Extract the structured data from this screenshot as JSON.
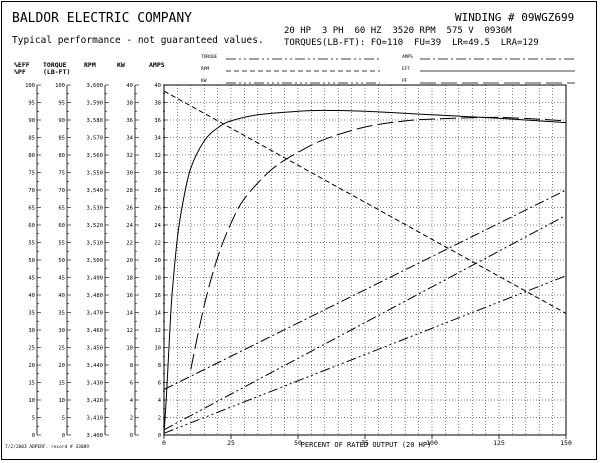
{
  "header": {
    "company": "BALDOR ELECTRIC COMPANY",
    "winding": "WINDING # 09WGZ699",
    "disclaimer": "Typical performance - not guaranteed values.",
    "nameplate": "20 HP  3 PH  60 HZ  3520 RPM  575 V  0936M",
    "torques": "TORQUES(LB-FT): FO=110  FU=39  LR=49.5  LRA=129"
  },
  "legend": {
    "left": [
      "TORQUE",
      "RPM",
      "KW"
    ],
    "right": [
      "AMPS",
      "EFF",
      "PF"
    ]
  },
  "footer": "7/2/2003 ADPERF. record # 33009",
  "chart_data": {
    "type": "line",
    "xlabel": "PERCENT OF RATED OUTPUT (20 HP)",
    "xlim": [
      0,
      150
    ],
    "x_ticks": [
      0,
      25,
      50,
      75,
      100,
      125,
      150
    ],
    "axes": [
      {
        "header": [
          "%EFF",
          "%PF"
        ],
        "range": [
          0,
          100
        ],
        "step": 5,
        "ticks": [
          "0",
          "5",
          "10",
          "15",
          "20",
          "25",
          "30",
          "35",
          "40",
          "45",
          "50",
          "55",
          "60",
          "65",
          "70",
          "75",
          "80",
          "85",
          "90",
          "95",
          "100"
        ]
      },
      {
        "header": [
          "TORQUE",
          "(LB-FT)"
        ],
        "range": [
          0,
          100
        ],
        "step": 5,
        "ticks": [
          "0",
          "5",
          "10",
          "15",
          "20",
          "25",
          "30",
          "35",
          "40",
          "45",
          "50",
          "55",
          "60",
          "65",
          "70",
          "75",
          "80",
          "85",
          "90",
          "95",
          "100"
        ]
      },
      {
        "header": [
          "",
          "RPM"
        ],
        "range": [
          3400,
          3600
        ],
        "step": 10,
        "ticks": [
          "3,400",
          "3,410",
          "3,420",
          "3,430",
          "3,440",
          "3,450",
          "3,460",
          "3,470",
          "3,480",
          "3,490",
          "3,500",
          "3,510",
          "3,520",
          "3,530",
          "3,540",
          "3,550",
          "3,560",
          "3,570",
          "3,580",
          "3,590",
          "3,600"
        ]
      },
      {
        "header": [
          "",
          "KW"
        ],
        "range": [
          0,
          40
        ],
        "step": 2,
        "ticks": [
          "0",
          "2",
          "4",
          "6",
          "8",
          "10",
          "12",
          "14",
          "16",
          "18",
          "20",
          "22",
          "24",
          "26",
          "28",
          "30",
          "32",
          "34",
          "36",
          "38",
          "40"
        ]
      },
      {
        "header": [
          "",
          "AMPS"
        ],
        "range": [
          0,
          40
        ],
        "step": 2,
        "ticks": [
          "0",
          "2",
          "4",
          "6",
          "8",
          "10",
          "12",
          "14",
          "16",
          "18",
          "20",
          "22",
          "24",
          "26",
          "28",
          "30",
          "32",
          "34",
          "36",
          "38",
          "40"
        ]
      }
    ],
    "grid": true,
    "series": [
      {
        "name": "EFF",
        "axis": "AMPS",
        "dash": "solid",
        "x": [
          0,
          1,
          2,
          3,
          5,
          7,
          10,
          15,
          20,
          25,
          35,
          50,
          60,
          75,
          100,
          125,
          150
        ],
        "y": [
          0,
          5,
          11,
          16,
          22.5,
          26.5,
          30.5,
          33.6,
          35.1,
          35.9,
          36.6,
          37.0,
          37.1,
          37.0,
          36.6,
          36.2,
          35.7
        ]
      },
      {
        "name": "PF",
        "axis": "AMPS",
        "dash": "longdash",
        "x": [
          10,
          15,
          20,
          25,
          30,
          40,
          50,
          60,
          75,
          90,
          100,
          125,
          150
        ],
        "y": [
          7.5,
          14.8,
          20.3,
          24.2,
          27.0,
          30.3,
          32.3,
          33.8,
          35.2,
          35.9,
          36.1,
          36.3,
          35.9
        ]
      },
      {
        "name": "RPM",
        "axis": "AMPS",
        "dash": "shortdash",
        "x": [
          0,
          150
        ],
        "y": [
          39.3,
          13.9
        ]
      },
      {
        "name": "AMPS",
        "axis": "AMPS",
        "dash": "dashdot",
        "x": [
          0,
          150
        ],
        "y": [
          5.2,
          28.0
        ]
      },
      {
        "name": "TORQUE",
        "axis": "AMPS",
        "dash": "dashdotdot",
        "x": [
          0,
          150
        ],
        "y": [
          0.6,
          25.1
        ]
      },
      {
        "name": "KW",
        "axis": "AMPS",
        "dash": "dashdotdotdot",
        "x": [
          0,
          150
        ],
        "y": [
          0.2,
          18.2
        ]
      }
    ]
  }
}
